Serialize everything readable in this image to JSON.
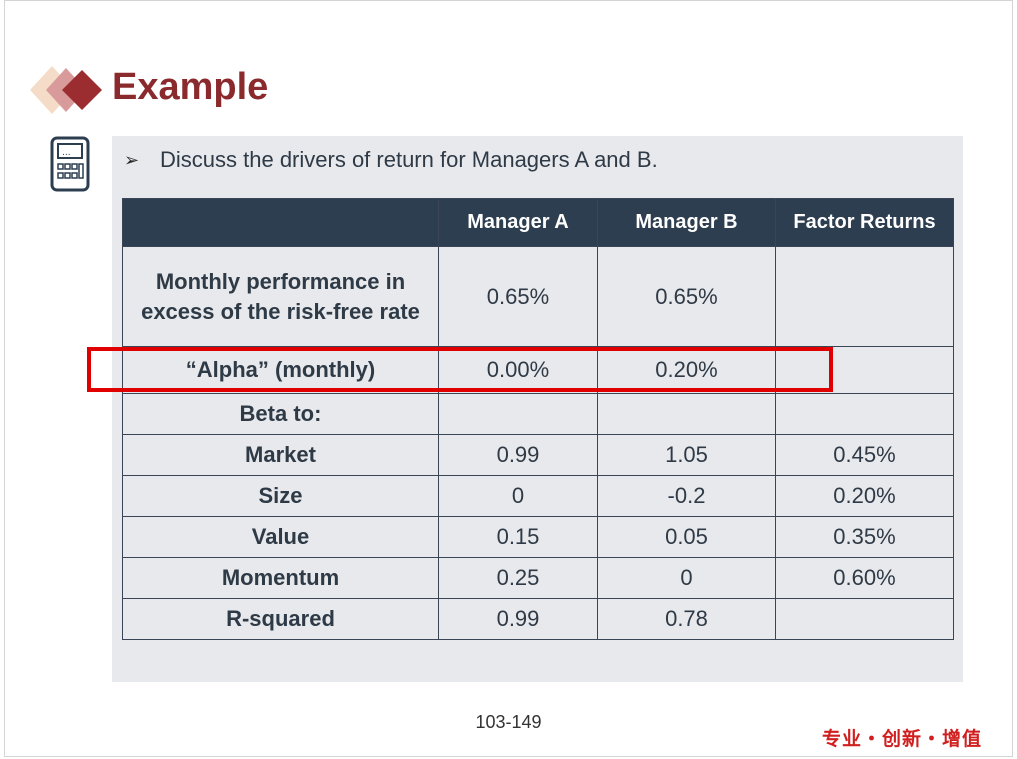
{
  "slide": {
    "title": "Example",
    "bullet": "Discuss the drivers of return for Managers A and B.",
    "page_number": "103-149",
    "slogan": "专业・创新・增值"
  },
  "table": {
    "headers": [
      "",
      "Manager A",
      "Manager B",
      "Factor Returns"
    ],
    "rows": [
      {
        "label": "Monthly performance in excess of the risk-free rate",
        "a": "0.65%",
        "b": "0.65%",
        "f": ""
      },
      {
        "label": "“Alpha” (monthly)",
        "a": "0.00%",
        "b": "0.20%",
        "f": ""
      },
      {
        "label": "Beta to:",
        "a": "",
        "b": "",
        "f": ""
      },
      {
        "label": "Market",
        "a": "0.99",
        "b": "1.05",
        "f": "0.45%"
      },
      {
        "label": "Size",
        "a": "0",
        "b": "-0.2",
        "f": "0.20%"
      },
      {
        "label": "Value",
        "a": "0.15",
        "b": "0.05",
        "f": "0.35%"
      },
      {
        "label": "Momentum",
        "a": "0.25",
        "b": "0",
        "f": "0.60%"
      },
      {
        "label": "R-squared",
        "a": "0.99",
        "b": "0.78",
        "f": ""
      }
    ]
  },
  "colors": {
    "title": "#8b2a2d",
    "header_bg": "#2c3e50",
    "panel_bg": "#e8e9ec",
    "highlight": "#e00000",
    "slogan": "#d11f1f"
  },
  "icons": [
    "diamond-logo-icon",
    "calculator-icon",
    "bullet-arrow-icon"
  ]
}
